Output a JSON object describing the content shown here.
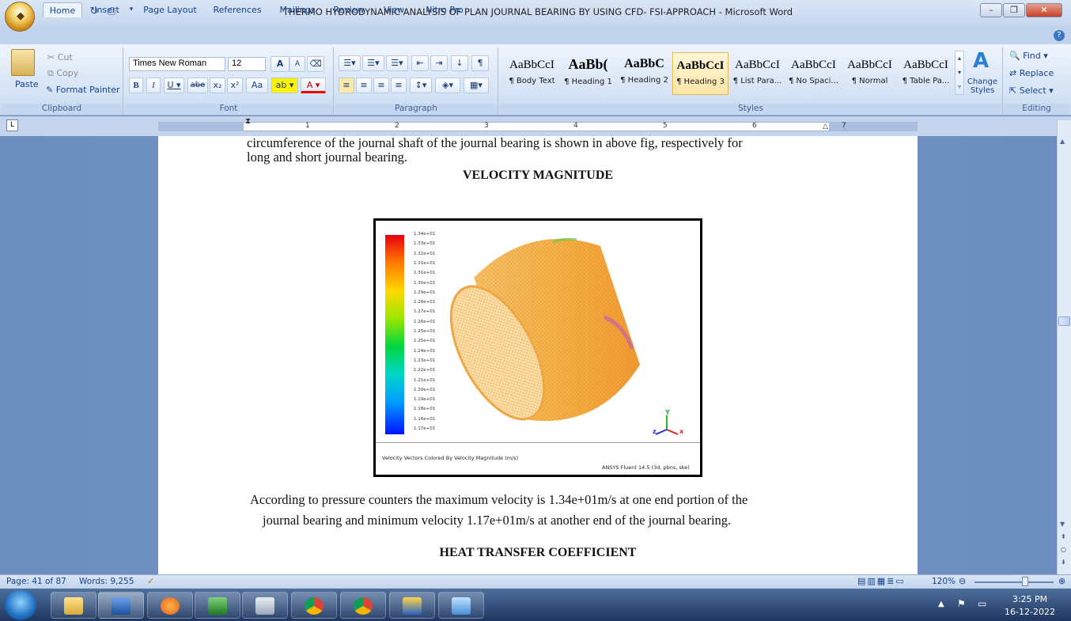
{
  "window": {
    "title": "THERMO HYDRODYNAMIC ANALYSIS OF PLAN JOURNAL BEARING BY USING CFD- FSI-APPROACH - Microsoft Word",
    "minimize": "–",
    "restore": "❐",
    "close": "✕"
  },
  "tabs": [
    "Home",
    "Insert",
    "Page Layout",
    "References",
    "Mailings",
    "Review",
    "View",
    "Nitro Pro"
  ],
  "clipboard": {
    "paste": "Paste",
    "cut": "Cut",
    "copy": "Copy",
    "format_painter": "Format Painter",
    "label": "Clipboard"
  },
  "font": {
    "name": "Times New Roman",
    "size": "12",
    "label": "Font",
    "grow": "A",
    "shrink": "A",
    "case": "Aa"
  },
  "paragraph": {
    "label": "Paragraph"
  },
  "styles": {
    "label": "Styles",
    "items": [
      {
        "sample": "AaBbCcI",
        "name": "¶ Body Text"
      },
      {
        "sample": "AaBb(",
        "name": "¶ Heading 1"
      },
      {
        "sample": "AaBbC",
        "name": "¶ Heading 2"
      },
      {
        "sample": "AaBbCcI",
        "name": "¶ Heading 3"
      },
      {
        "sample": "AaBbCcI",
        "name": "¶ List Para..."
      },
      {
        "sample": "AaBbCcI",
        "name": "¶ No Spaci..."
      },
      {
        "sample": "AaBbCcI",
        "name": "¶ Normal"
      },
      {
        "sample": "AaBbCcI",
        "name": "¶ Table Pa..."
      }
    ],
    "change_styles": "Change Styles"
  },
  "editing": {
    "find": "Find",
    "replace": "Replace",
    "select": "Select",
    "label": "Editing"
  },
  "ruler_numbers": [
    "1",
    "2",
    "3",
    "4",
    "5",
    "6",
    "7"
  ],
  "document": {
    "line1": "circumference of the journal shaft of the journal bearing is shown in above fig, respectively for",
    "line2": "long and short journal bearing.",
    "heading1": "VELOCITY MAGNITUDE",
    "para1": "According to pressure counters the maximum velocity is 1.34e+01m/s at one end portion of the",
    "para2": "journal bearing and minimum velocity 1.17e+01m/s at another end of the journal bearing.",
    "heading2": "HEAT TRANSFER COEFFICIENT"
  },
  "figure": {
    "legend": [
      "1.34e+01",
      "1.33e+01",
      "1.32e+01",
      "1.31e+01",
      "1.31e+01",
      "1.30e+01",
      "1.29e+01",
      "1.28e+01",
      "1.27e+01",
      "1.26e+01",
      "1.25e+01",
      "1.25e+01",
      "1.24e+01",
      "1.23e+01",
      "1.22e+01",
      "1.21e+01",
      "1.20e+01",
      "1.19e+01",
      "1.18e+01",
      "1.16e+01",
      "1.17e+01"
    ],
    "caption_left": "Velocity Vectors Colored By Velocity Magnitude (m/s)",
    "caption_right": "ANSYS Fluent 14.5 (3d, pbns, ske)",
    "axis_x": "x",
    "axis_y": "Y",
    "axis_z": "z"
  },
  "status": {
    "page": "Page: 41 of 87",
    "words": "Words: 9,255",
    "zoom": "120%"
  },
  "clock": {
    "time": "3:25 PM",
    "date": "16-12-2022"
  },
  "colors": {
    "accent": "#15428b",
    "ribbon": "#d5e3f5",
    "taskbar": "#1e3660"
  }
}
